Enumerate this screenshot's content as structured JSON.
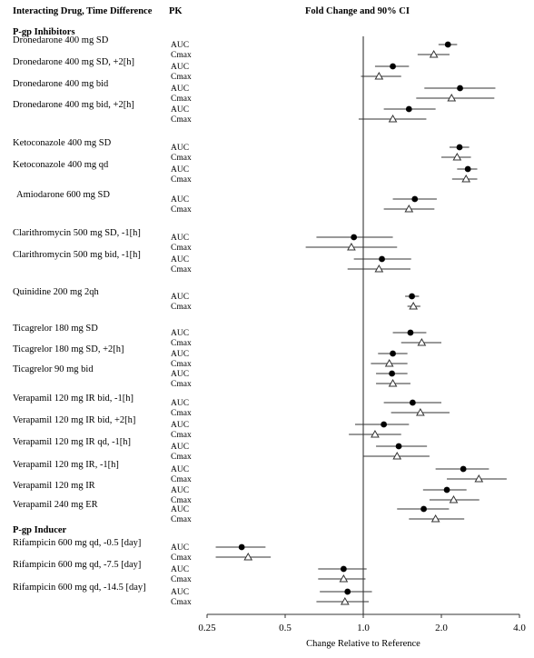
{
  "chart_data": {
    "type": "forest",
    "header": {
      "left": "Interacting Drug, Time Difference",
      "pk": "PK",
      "right": "Fold Change and 90% CI"
    },
    "xlabel": "Change Relative to Reference",
    "xscale": "log",
    "xlim": [
      0.25,
      4.0
    ],
    "xticks": [
      "0.25",
      "0.5",
      "1.0",
      "2.0",
      "4.0"
    ],
    "reference_line": 1.0,
    "markers": {
      "AUC": "filled-circle",
      "Cmax": "open-triangle"
    },
    "groups": [
      {
        "title": "P-gp Inhibitors",
        "entries": [
          {
            "label": "Dronedarone 400 mg SD",
            "AUC": {
              "est": 2.12,
              "ci": [
                1.95,
                2.3
              ]
            },
            "Cmax": {
              "est": 1.87,
              "ci": [
                1.62,
                2.15
              ]
            }
          },
          {
            "label": "Dronedarone 400 mg SD, +2[h]",
            "AUC": {
              "est": 1.3,
              "ci": [
                1.11,
                1.5
              ]
            },
            "Cmax": {
              "est": 1.15,
              "ci": [
                0.98,
                1.4
              ]
            }
          },
          {
            "label": "Dronedarone 400 mg bid",
            "AUC": {
              "est": 2.36,
              "ci": [
                1.72,
                3.23
              ]
            },
            "Cmax": {
              "est": 2.19,
              "ci": [
                1.6,
                3.2
              ]
            }
          },
          {
            "label": "Dronedarone 400 mg bid, +2[h]",
            "AUC": {
              "est": 1.5,
              "ci": [
                1.2,
                1.9
              ]
            },
            "Cmax": {
              "est": 1.3,
              "ci": [
                0.96,
                1.75
              ]
            }
          },
          {
            "label": "Ketoconazole 400 mg SD",
            "AUC": {
              "est": 2.35,
              "ci": [
                2.15,
                2.56
              ]
            },
            "Cmax": {
              "est": 2.3,
              "ci": [
                2.0,
                2.6
              ]
            }
          },
          {
            "label": "Ketoconazole 400 mg qd",
            "AUC": {
              "est": 2.53,
              "ci": [
                2.3,
                2.75
              ]
            },
            "Cmax": {
              "est": 2.49,
              "ci": [
                2.2,
                2.75
              ]
            }
          },
          {
            "label": "Amiodarone 600 mg SD",
            "AUC": {
              "est": 1.58,
              "ci": [
                1.3,
                1.92
              ]
            },
            "Cmax": {
              "est": 1.5,
              "ci": [
                1.2,
                1.88
              ]
            }
          },
          {
            "label": "Clarithromycin 500 mg SD, -1[h]",
            "AUC": {
              "est": 0.92,
              "ci": [
                0.66,
                1.3
              ]
            },
            "Cmax": {
              "est": 0.9,
              "ci": [
                0.6,
                1.35
              ]
            }
          },
          {
            "label": "Clarithromycin 500 mg bid, -1[h]",
            "AUC": {
              "est": 1.18,
              "ci": [
                0.92,
                1.53
              ]
            },
            "Cmax": {
              "est": 1.15,
              "ci": [
                0.87,
                1.52
              ]
            }
          },
          {
            "label": "Quinidine 200 mg 2qh",
            "AUC": {
              "est": 1.54,
              "ci": [
                1.45,
                1.64
              ]
            },
            "Cmax": {
              "est": 1.56,
              "ci": [
                1.48,
                1.66
              ]
            }
          },
          {
            "label": "Ticagrelor 180 mg SD",
            "AUC": {
              "est": 1.52,
              "ci": [
                1.3,
                1.75
              ]
            },
            "Cmax": {
              "est": 1.68,
              "ci": [
                1.4,
                2.0
              ]
            }
          },
          {
            "label": "Ticagrelor 180 mg SD, +2[h]",
            "AUC": {
              "est": 1.3,
              "ci": [
                1.14,
                1.48
              ]
            },
            "Cmax": {
              "est": 1.26,
              "ci": [
                1.07,
                1.48
              ]
            }
          },
          {
            "label": "Ticagrelor 90 mg bid",
            "AUC": {
              "est": 1.29,
              "ci": [
                1.12,
                1.48
              ]
            },
            "Cmax": {
              "est": 1.3,
              "ci": [
                1.12,
                1.52
              ]
            }
          },
          {
            "label": "Verapamil 120 mg IR bid, -1[h]",
            "AUC": {
              "est": 1.55,
              "ci": [
                1.2,
                2.0
              ]
            },
            "Cmax": {
              "est": 1.66,
              "ci": [
                1.28,
                2.15
              ]
            }
          },
          {
            "label": "Verapamil 120 mg IR bid, +2[h]",
            "AUC": {
              "est": 1.2,
              "ci": [
                0.93,
                1.5
              ]
            },
            "Cmax": {
              "est": 1.11,
              "ci": [
                0.88,
                1.4
              ]
            }
          },
          {
            "label": "Verapamil 120 mg IR qd, -1[h]",
            "AUC": {
              "est": 1.37,
              "ci": [
                1.12,
                1.76
              ]
            },
            "Cmax": {
              "est": 1.35,
              "ci": [
                1.0,
                1.8
              ]
            }
          },
          {
            "label": "Verapamil 120 mg IR, -1[h]",
            "AUC": {
              "est": 2.43,
              "ci": [
                1.9,
                3.05
              ]
            },
            "Cmax": {
              "est": 2.79,
              "ci": [
                2.1,
                3.57
              ]
            }
          },
          {
            "label": "Verapamil 120 mg IR",
            "AUC": {
              "est": 2.1,
              "ci": [
                1.7,
                2.5
              ]
            },
            "Cmax": {
              "est": 2.23,
              "ci": [
                1.8,
                2.8
              ]
            }
          },
          {
            "label": "Verapamil 240 mg ER",
            "AUC": {
              "est": 1.71,
              "ci": [
                1.35,
                2.14
              ]
            },
            "Cmax": {
              "est": 1.9,
              "ci": [
                1.5,
                2.45
              ]
            }
          }
        ]
      },
      {
        "title": "P-gp Inducer",
        "entries": [
          {
            "label": "Rifampicin 600 mg qd, -0.5 [day]",
            "AUC": {
              "est": 0.34,
              "ci": [
                0.27,
                0.42
              ]
            },
            "Cmax": {
              "est": 0.36,
              "ci": [
                0.27,
                0.44
              ]
            }
          },
          {
            "label": "Rifampicin 600 mg qd, -7.5 [day]",
            "AUC": {
              "est": 0.84,
              "ci": [
                0.67,
                1.03
              ]
            },
            "Cmax": {
              "est": 0.84,
              "ci": [
                0.67,
                1.02
              ]
            }
          },
          {
            "label": "Rifampicin 600 mg qd, -14.5 [day]",
            "AUC": {
              "est": 0.87,
              "ci": [
                0.68,
                1.08
              ]
            },
            "Cmax": {
              "est": 0.85,
              "ci": [
                0.66,
                1.05
              ]
            }
          }
        ]
      }
    ]
  }
}
